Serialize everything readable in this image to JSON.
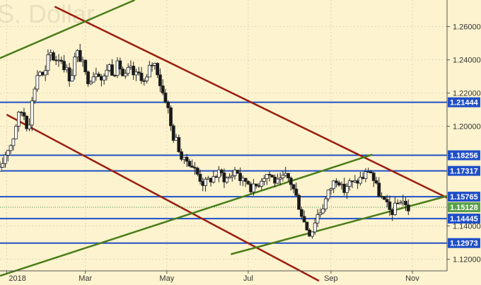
{
  "chart_data": {
    "type": "candlestick",
    "watermark": "S. Dollar",
    "ylim": [
      1.113,
      1.276
    ],
    "y_ticks": [
      "1.26000",
      "1.24000",
      "1.22000",
      "1.20000",
      "1.14000",
      "1.12000"
    ],
    "x_ticks": [
      "2018",
      "Mar",
      "May",
      "Jul",
      "Sep",
      "Nov"
    ],
    "xlim_days": [
      -5,
      330
    ],
    "last_price": "1.15128",
    "levels": [
      {
        "value": 1.21444,
        "label": "1.21444"
      },
      {
        "value": 1.18256,
        "label": "1.18256"
      },
      {
        "value": 1.17317,
        "label": "1.17317"
      },
      {
        "value": 1.15765,
        "label": "1.15765"
      },
      {
        "value": 1.14445,
        "label": "1.14445"
      },
      {
        "value": 1.12973,
        "label": "1.12973"
      }
    ],
    "trendlines": [
      {
        "color": "#9b1d10",
        "p1": [
          36,
          1.272
        ],
        "p2": [
          330,
          1.157
        ]
      },
      {
        "color": "#9b1d10",
        "p1": [
          0,
          1.207
        ],
        "p2": [
          234,
          1.107
        ]
      },
      {
        "color": "#4a7d18",
        "p1": [
          -5,
          1.241
        ],
        "p2": [
          96,
          1.276
        ]
      },
      {
        "color": "#4a7d18",
        "p1": [
          -5,
          1.11
        ],
        "p2": [
          274,
          1.183
        ]
      },
      {
        "color": "#4a7d18",
        "p1": [
          168,
          1.123
        ],
        "p2": [
          330,
          1.158
        ]
      }
    ],
    "price_path": [
      [
        -5,
        1.173
      ],
      [
        0,
        1.186
      ],
      [
        4,
        1.19
      ],
      [
        8,
        1.205
      ],
      [
        12,
        1.21
      ],
      [
        16,
        1.198
      ],
      [
        20,
        1.22
      ],
      [
        24,
        1.235
      ],
      [
        28,
        1.228
      ],
      [
        32,
        1.245
      ],
      [
        36,
        1.24
      ],
      [
        40,
        1.242
      ],
      [
        44,
        1.235
      ],
      [
        48,
        1.228
      ],
      [
        52,
        1.245
      ],
      [
        56,
        1.24
      ],
      [
        60,
        1.228
      ],
      [
        64,
        1.23
      ],
      [
        68,
        1.235
      ],
      [
        72,
        1.226
      ],
      [
        76,
        1.238
      ],
      [
        80,
        1.232
      ],
      [
        84,
        1.238
      ],
      [
        88,
        1.228
      ],
      [
        92,
        1.235
      ],
      [
        96,
        1.23
      ],
      [
        100,
        1.232
      ],
      [
        104,
        1.225
      ],
      [
        108,
        1.238
      ],
      [
        112,
        1.237
      ],
      [
        116,
        1.222
      ],
      [
        120,
        1.215
      ],
      [
        124,
        1.195
      ],
      [
        128,
        1.19
      ],
      [
        132,
        1.178
      ],
      [
        136,
        1.18
      ],
      [
        140,
        1.175
      ],
      [
        144,
        1.17
      ],
      [
        148,
        1.165
      ],
      [
        152,
        1.168
      ],
      [
        156,
        1.17
      ],
      [
        160,
        1.172
      ],
      [
        164,
        1.168
      ],
      [
        168,
        1.17
      ],
      [
        172,
        1.175
      ],
      [
        176,
        1.166
      ],
      [
        180,
        1.168
      ],
      [
        184,
        1.162
      ],
      [
        188,
        1.165
      ],
      [
        192,
        1.17
      ],
      [
        196,
        1.172
      ],
      [
        200,
        1.168
      ],
      [
        204,
        1.165
      ],
      [
        208,
        1.17
      ],
      [
        212,
        1.168
      ],
      [
        216,
        1.16
      ],
      [
        220,
        1.15
      ],
      [
        224,
        1.14
      ],
      [
        228,
        1.135
      ],
      [
        232,
        1.146
      ],
      [
        236,
        1.15
      ],
      [
        240,
        1.158
      ],
      [
        244,
        1.165
      ],
      [
        248,
        1.17
      ],
      [
        252,
        1.16
      ],
      [
        256,
        1.166
      ],
      [
        260,
        1.165
      ],
      [
        264,
        1.168
      ],
      [
        268,
        1.17
      ],
      [
        272,
        1.175
      ],
      [
        276,
        1.165
      ],
      [
        280,
        1.158
      ],
      [
        284,
        1.153
      ],
      [
        288,
        1.148
      ],
      [
        292,
        1.152
      ],
      [
        296,
        1.157
      ],
      [
        300,
        1.15
      ],
      [
        302,
        1.151
      ]
    ]
  }
}
